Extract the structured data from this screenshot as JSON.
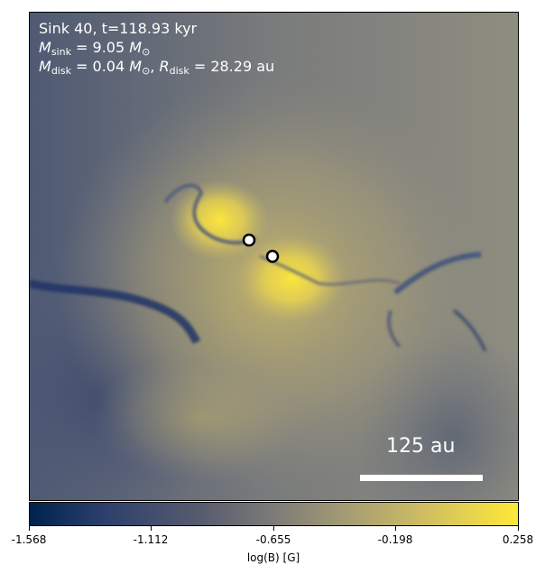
{
  "annotations": {
    "title": "Sink 40, t=118.93 kyr",
    "msink_symbol": "M",
    "msink_sub": "sink",
    "msink_value": "= 9.05",
    "msink_unit_sub": "⊙",
    "mdisk_symbol": "M",
    "mdisk_sub": "disk",
    "mdisk_value": "= 0.04",
    "mdisk_unit_sub": "⊙",
    "rdisk_symbol": "R",
    "rdisk_sub": "disk",
    "rdisk_value": "= 28.29 au"
  },
  "scalebar": {
    "label": "125 au"
  },
  "colorbar": {
    "label": "log(B) [G]",
    "ticks": [
      "-1.568",
      "-1.112",
      "-0.655",
      "-0.198",
      "0.258"
    ],
    "cmap": "cividis"
  }
}
